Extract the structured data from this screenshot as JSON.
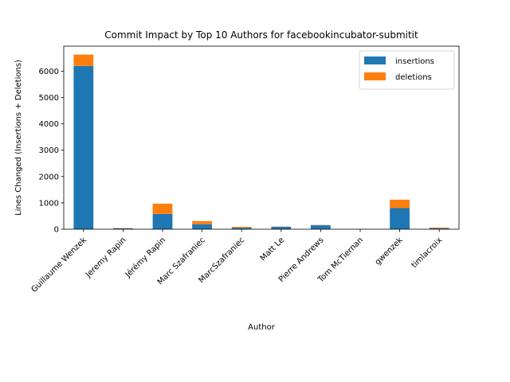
{
  "chart_data": {
    "type": "bar",
    "stacked": true,
    "title": "Commit Impact by Top 10 Authors for facebookincubator-submitit",
    "xlabel": "Author",
    "ylabel": "Lines Changed (Insertions + Deletions)",
    "ylim": [
      0,
      6950
    ],
    "yticks": [
      0,
      1000,
      2000,
      3000,
      4000,
      5000,
      6000
    ],
    "grid": false,
    "legend_position": "top-right",
    "categories": [
      "Guillaume Wenzek",
      "Jeremy Rapin",
      "Jérémy Rapin",
      "Marc Szafraniec",
      "MarcSzafraniec",
      "Matt Le",
      "Pierre Andrews",
      "Tom McTiernan",
      "gwenzek",
      "timlacroix"
    ],
    "series": [
      {
        "name": "insertions",
        "color": "#1f77b4",
        "values": [
          6200,
          30,
          580,
          190,
          55,
          90,
          150,
          5,
          800,
          30
        ]
      },
      {
        "name": "deletions",
        "color": "#ff7f0e",
        "values": [
          430,
          10,
          390,
          120,
          35,
          10,
          10,
          2,
          320,
          30
        ]
      }
    ]
  }
}
